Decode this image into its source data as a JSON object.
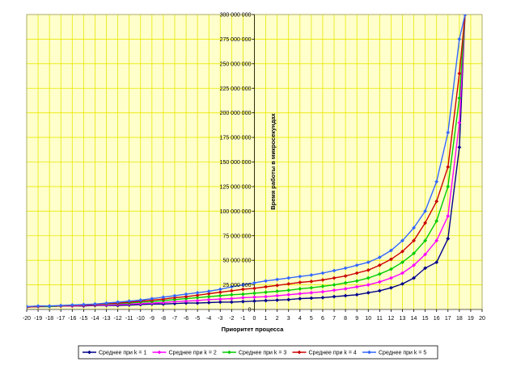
{
  "chart_data": {
    "type": "line",
    "title": "",
    "xlabel": "Приоритет процесса",
    "ylabel": "Время работы в микросекундах",
    "xlim": [
      -20,
      20
    ],
    "ylim": [
      0,
      300000000
    ],
    "x_ticks": [
      "-20",
      "-19",
      "-18",
      "-17",
      "-16",
      "-15",
      "-14",
      "-13",
      "-12",
      "-11",
      "-10",
      "-9",
      "-8",
      "-7",
      "-6",
      "-5",
      "-4",
      "-3",
      "-2",
      "-1",
      "0",
      "1",
      "2",
      "3",
      "4",
      "5",
      "6",
      "7",
      "8",
      "9",
      "10",
      "11",
      "12",
      "13",
      "14",
      "15",
      "16",
      "17",
      "18",
      "19",
      "20"
    ],
    "y_ticks": [
      "0",
      "25 000 000",
      "50 000 000",
      "75 000 000",
      "100 000 000",
      "125 000 000",
      "150 000 000",
      "175 000 000",
      "200 000 000",
      "225 000 000",
      "250 000 000",
      "275 000 000",
      "300 000 000"
    ],
    "y_tick_values": [
      0,
      25000000,
      50000000,
      75000000,
      100000000,
      125000000,
      150000000,
      175000000,
      200000000,
      225000000,
      250000000,
      275000000,
      300000000
    ],
    "grid": true,
    "background_color": "#FFFFCC",
    "grid_color": "#E8E800",
    "legend_position": "bottom",
    "x": [
      -20,
      -19,
      -18,
      -17,
      -16,
      -15,
      -14,
      -13,
      -12,
      -11,
      -10,
      -9,
      -8,
      -7,
      -6,
      -5,
      -4,
      -3,
      -2,
      -1,
      0,
      1,
      2,
      3,
      4,
      5,
      6,
      7,
      8,
      9,
      10,
      11,
      12,
      13,
      14,
      15,
      16,
      17,
      18,
      18.5
    ],
    "series": [
      {
        "name": "Среднее при k = 1",
        "color": "#00008B",
        "values": [
          2500000,
          3000000,
          3000000,
          3500000,
          3500000,
          3500000,
          4000000,
          4000000,
          4000000,
          4500000,
          5000000,
          5500000,
          5500000,
          6000000,
          6500000,
          6500000,
          7000000,
          7500000,
          7500000,
          8000000,
          8500000,
          9000000,
          9500000,
          10000000,
          11000000,
          11500000,
          12000000,
          13000000,
          14000000,
          15000000,
          17000000,
          19000000,
          22000000,
          26000000,
          32000000,
          42000000,
          48000000,
          72000000,
          165000000,
          300000000
        ]
      },
      {
        "name": "Среднее при k = 2",
        "color": "#FF00FF",
        "values": [
          2500000,
          3000000,
          3000000,
          3500000,
          3500000,
          4000000,
          4500000,
          4500000,
          5000000,
          5500000,
          6000000,
          6500000,
          7000000,
          8000000,
          8500000,
          9000000,
          10000000,
          10500000,
          11000000,
          12000000,
          12500000,
          13000000,
          14000000,
          15000000,
          16000000,
          17000000,
          18000000,
          19500000,
          21000000,
          23000000,
          25000000,
          28000000,
          32000000,
          37000000,
          45000000,
          56000000,
          70000000,
          95000000,
          190000000,
          300000000
        ]
      },
      {
        "name": "Среднее при k = 3",
        "color": "#00CC00",
        "values": [
          2500000,
          3000000,
          3000000,
          3500000,
          4000000,
          4500000,
          5000000,
          5500000,
          6000000,
          6500000,
          7500000,
          8000000,
          9000000,
          10000000,
          11000000,
          12000000,
          13000000,
          14000000,
          15000000,
          15500000,
          16500000,
          17500000,
          18500000,
          19500000,
          21000000,
          22000000,
          23500000,
          25000000,
          27000000,
          29000000,
          32000000,
          36000000,
          41000000,
          48000000,
          57000000,
          70000000,
          90000000,
          125000000,
          215000000,
          300000000
        ]
      },
      {
        "name": "Среднее при k = 4",
        "color": "#CC0000",
        "values": [
          2500000,
          3000000,
          3500000,
          3500000,
          4000000,
          4500000,
          5000000,
          6000000,
          6500000,
          7500000,
          8500000,
          9500000,
          10500000,
          12000000,
          13000000,
          14500000,
          16000000,
          17500000,
          19000000,
          20500000,
          21500000,
          23000000,
          24500000,
          26000000,
          27500000,
          28500000,
          30000000,
          32000000,
          34000000,
          37000000,
          40000000,
          45000000,
          51000000,
          59000000,
          70000000,
          88000000,
          110000000,
          145000000,
          240000000,
          300000000
        ]
      },
      {
        "name": "Среднее при k = 5",
        "color": "#3366FF",
        "values": [
          3000000,
          3500000,
          3500000,
          4000000,
          4500000,
          5000000,
          5500000,
          6500000,
          7500000,
          8500000,
          9500000,
          11000000,
          12500000,
          14000000,
          15500000,
          17000000,
          18500000,
          20500000,
          23000000,
          25000000,
          27000000,
          29000000,
          30500000,
          32000000,
          33500000,
          35000000,
          37000000,
          39500000,
          42000000,
          45000000,
          48000000,
          53000000,
          60000000,
          70000000,
          83000000,
          100000000,
          130000000,
          180000000,
          275000000,
          300000000
        ]
      }
    ]
  }
}
